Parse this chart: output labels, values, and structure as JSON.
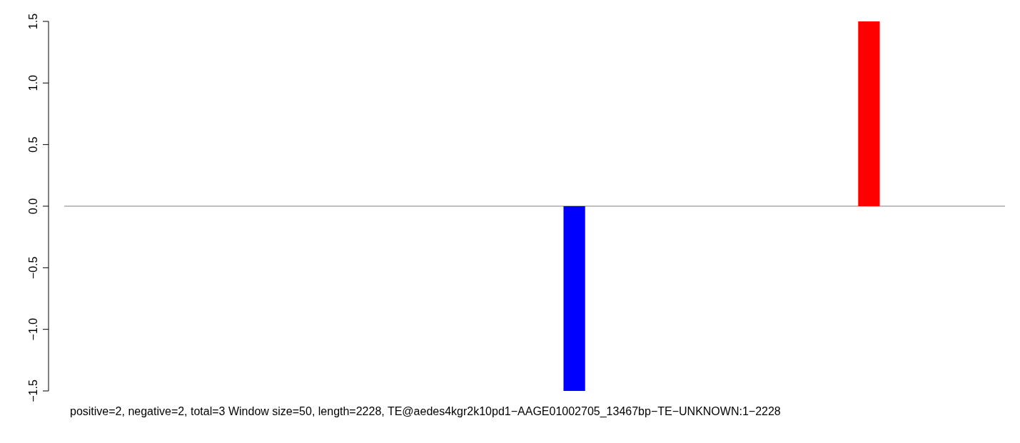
{
  "chart_data": {
    "type": "bar",
    "categories": [
      null,
      null,
      null,
      null,
      null,
      null,
      null,
      null,
      null,
      null,
      null,
      null,
      null,
      null,
      null,
      null,
      null,
      null,
      null,
      null,
      null,
      null,
      null,
      null,
      null,
      null,
      null,
      null,
      null,
      null,
      null,
      null,
      null,
      null,
      null,
      null,
      null,
      null
    ],
    "values": [
      null,
      null,
      null,
      null,
      null,
      null,
      null,
      null,
      null,
      null,
      null,
      null,
      null,
      null,
      null,
      null,
      null,
      null,
      null,
      null,
      -1.5,
      null,
      null,
      null,
      null,
      null,
      null,
      null,
      null,
      null,
      null,
      null,
      1.5,
      null,
      null,
      null,
      null,
      null
    ],
    "colors": [
      null,
      null,
      null,
      null,
      null,
      null,
      null,
      null,
      null,
      null,
      null,
      null,
      null,
      null,
      null,
      null,
      null,
      null,
      null,
      null,
      "#0000ff",
      null,
      null,
      null,
      null,
      null,
      null,
      null,
      null,
      null,
      null,
      null,
      "#ff0000",
      null,
      null,
      null,
      null,
      null
    ],
    "ylim": [
      -1.5,
      1.5
    ],
    "yticks": [
      {
        "value": -1.5,
        "label": "−1.5"
      },
      {
        "value": -1.0,
        "label": "−1.0"
      },
      {
        "value": -0.5,
        "label": "−0.5"
      },
      {
        "value": 0,
        "label": "0.0"
      },
      {
        "value": 0.5,
        "label": "0.5"
      },
      {
        "value": 1.0,
        "label": "1.0"
      },
      {
        "value": 1.5,
        "label": "1.5"
      }
    ],
    "tick_labels": "y",
    "ref_lines": [
      {
        "axis": "y",
        "value": 0,
        "color": "#808080"
      }
    ],
    "annotations": [
      "positive=2, negative=2, total=3  Window size=50, length=2228, TE@aedes4kgr2k10pd1−AAGE01002705_13467bp−TE−UNKNOWN:1−2228"
    ]
  }
}
